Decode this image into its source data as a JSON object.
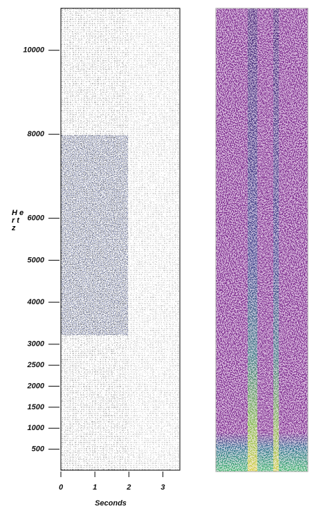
{
  "chart_data": {
    "type": "spectrogram",
    "x_label": "Seconds",
    "y_label": "Hertz",
    "xlim": [
      0,
      3.5
    ],
    "xticks": [
      0,
      1,
      2,
      3
    ],
    "ylim": [
      0,
      11000
    ],
    "yticks": [
      500,
      1000,
      1500,
      2000,
      2500,
      3000,
      4000,
      5000,
      6000,
      8000,
      10000
    ]
  }
}
